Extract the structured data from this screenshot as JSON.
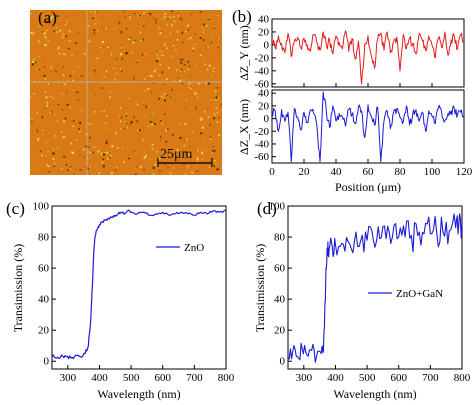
{
  "panels": {
    "a": {
      "letter": "(a)",
      "scale_label": "25μm",
      "image_colors": {
        "base": "#d97a17",
        "speck_light": "#e8dc4a",
        "speck_dark": "#3b2a10",
        "grid_line": "#b9b2a0"
      }
    },
    "b": {
      "letter": "(b)"
    },
    "c": {
      "letter": "(c)"
    },
    "d": {
      "letter": "(d)"
    }
  },
  "chart_data": [
    {
      "id": "b-top",
      "type": "line",
      "ylabel": "ΔZ_Y (nm)",
      "xlim": [
        0,
        120
      ],
      "ylim": [
        -65,
        40
      ],
      "yticks": [
        "40",
        "20",
        "0",
        "-20",
        "-40",
        "-60"
      ],
      "yticks_values": [
        40,
        20,
        0,
        -20,
        -40,
        -60
      ],
      "xticks_values": [
        0,
        20,
        40,
        60,
        80,
        100,
        120
      ],
      "grid": false,
      "series": [
        {
          "color": "#e31b1b",
          "x": [
            0,
            2,
            4,
            6,
            8,
            10,
            12,
            14,
            16,
            18,
            20,
            22,
            24,
            26,
            28,
            30,
            32,
            34,
            36,
            38,
            40,
            42,
            44,
            46,
            48,
            50,
            52,
            54,
            56,
            58,
            60,
            62,
            64,
            66,
            68,
            70,
            72,
            74,
            76,
            78,
            80,
            82,
            84,
            86,
            88,
            90,
            92,
            94,
            96,
            98,
            100,
            102,
            104,
            106,
            108,
            110,
            112,
            114,
            116,
            118,
            120
          ],
          "values": [
            8,
            -5,
            14,
            2,
            -12,
            18,
            -18,
            6,
            12,
            -4,
            10,
            0,
            -10,
            16,
            4,
            -8,
            20,
            -2,
            8,
            -14,
            14,
            4,
            -6,
            22,
            -10,
            10,
            -22,
            6,
            -60,
            2,
            14,
            -16,
            -36,
            8,
            18,
            -8,
            20,
            -12,
            4,
            12,
            -40,
            16,
            -6,
            10,
            2,
            -14,
            18,
            6,
            -8,
            14,
            0,
            -20,
            10,
            -4,
            20,
            -16,
            8,
            12,
            -6,
            16,
            4
          ]
        }
      ]
    },
    {
      "id": "b-bottom",
      "type": "line",
      "xlabel": "Position (μm)",
      "ylabel": "ΔZ_X (nm)",
      "xlim": [
        0,
        120
      ],
      "ylim": [
        -70,
        45
      ],
      "yticks": [
        "40",
        "20",
        "0",
        "-20",
        "-40",
        "-60"
      ],
      "yticks_values": [
        40,
        20,
        0,
        -20,
        -40,
        -60
      ],
      "xticks": [
        "0",
        "20",
        "40",
        "60",
        "80",
        "100",
        "120"
      ],
      "xticks_values": [
        0,
        20,
        40,
        60,
        80,
        100,
        120
      ],
      "grid": false,
      "series": [
        {
          "color": "#1a1ad6",
          "x": [
            0,
            2,
            4,
            6,
            8,
            10,
            12,
            14,
            16,
            18,
            20,
            22,
            24,
            26,
            28,
            30,
            32,
            34,
            36,
            38,
            40,
            42,
            44,
            46,
            48,
            50,
            52,
            54,
            56,
            58,
            60,
            62,
            64,
            66,
            68,
            70,
            72,
            74,
            76,
            78,
            80,
            82,
            84,
            86,
            88,
            90,
            92,
            94,
            96,
            98,
            100,
            102,
            104,
            106,
            108,
            110,
            112,
            114,
            116,
            118,
            120
          ],
          "values": [
            8,
            12,
            -20,
            14,
            -4,
            10,
            -68,
            16,
            2,
            -18,
            10,
            -6,
            14,
            8,
            -10,
            -68,
            42,
            10,
            -14,
            20,
            -4,
            8,
            2,
            -12,
            14,
            6,
            -8,
            18,
            12,
            -30,
            22,
            4,
            -10,
            18,
            -68,
            -4,
            12,
            -16,
            10,
            16,
            2,
            -6,
            20,
            -10,
            8,
            14,
            -4,
            10,
            -20,
            12,
            4,
            -8,
            16,
            10,
            -4,
            8,
            12,
            14,
            6,
            10,
            4
          ]
        }
      ]
    },
    {
      "id": "c",
      "type": "line",
      "xlabel": "Wavelength (nm)",
      "ylabel": "Transimission (%)",
      "xlim": [
        250,
        800
      ],
      "ylim": [
        -5,
        100
      ],
      "xticks": [
        "300",
        "400",
        "500",
        "600",
        "700",
        "800"
      ],
      "xticks_values": [
        300,
        400,
        500,
        600,
        700,
        800
      ],
      "yticks": [
        "0",
        "20",
        "40",
        "60",
        "80",
        "100"
      ],
      "yticks_values": [
        0,
        20,
        40,
        60,
        80,
        100
      ],
      "legend": {
        "label": "ZnO",
        "position": "right-middle"
      },
      "grid": false,
      "series": [
        {
          "name": "ZnO",
          "color": "#1a1ad6",
          "x": [
            250,
            265,
            280,
            295,
            310,
            325,
            340,
            355,
            365,
            372,
            378,
            382,
            386,
            390,
            395,
            400,
            410,
            420,
            430,
            440,
            450,
            460,
            470,
            480,
            490,
            500,
            520,
            540,
            560,
            580,
            600,
            620,
            640,
            660,
            680,
            700,
            720,
            740,
            760,
            780,
            800
          ],
          "values": [
            3,
            2,
            4,
            3,
            2,
            4,
            3,
            5,
            10,
            25,
            50,
            70,
            80,
            84,
            86,
            88,
            90,
            91,
            92,
            93,
            94,
            95,
            96,
            95,
            97,
            96,
            95,
            96,
            94,
            95,
            96,
            94,
            95,
            96,
            95,
            94,
            96,
            95,
            97,
            96,
            97
          ]
        }
      ]
    },
    {
      "id": "d",
      "type": "line",
      "xlabel": "Wavelength (nm)",
      "ylabel": "Transimission (%)",
      "xlim": [
        250,
        800
      ],
      "ylim": [
        -5,
        100
      ],
      "xticks": [
        "300",
        "400",
        "500",
        "600",
        "700",
        "800"
      ],
      "xticks_values": [
        300,
        400,
        500,
        600,
        700,
        800
      ],
      "yticks": [
        "0",
        "20",
        "40",
        "60",
        "80",
        "100"
      ],
      "yticks_values": [
        0,
        20,
        40,
        60,
        80,
        100
      ],
      "legend": {
        "label": "ZnO+GaN",
        "position": "right-middle"
      },
      "grid": false,
      "series": [
        {
          "name": "ZnO+GaN",
          "color": "#1a1ad6",
          "x": [
            250,
            265,
            280,
            295,
            310,
            325,
            340,
            355,
            362,
            366,
            370,
            375,
            380,
            390,
            400,
            420,
            440,
            460,
            480,
            500,
            520,
            540,
            560,
            580,
            600,
            620,
            640,
            660,
            680,
            700,
            720,
            740,
            760,
            780,
            790,
            800
          ],
          "values": [
            2,
            6,
            3,
            8,
            4,
            7,
            3,
            5,
            6,
            30,
            60,
            68,
            72,
            74,
            75,
            76,
            77,
            77,
            78,
            78,
            78,
            79,
            79,
            80,
            80,
            80,
            81,
            81,
            82,
            82,
            83,
            83,
            84,
            86,
            88,
            90
          ]
        }
      ]
    }
  ]
}
